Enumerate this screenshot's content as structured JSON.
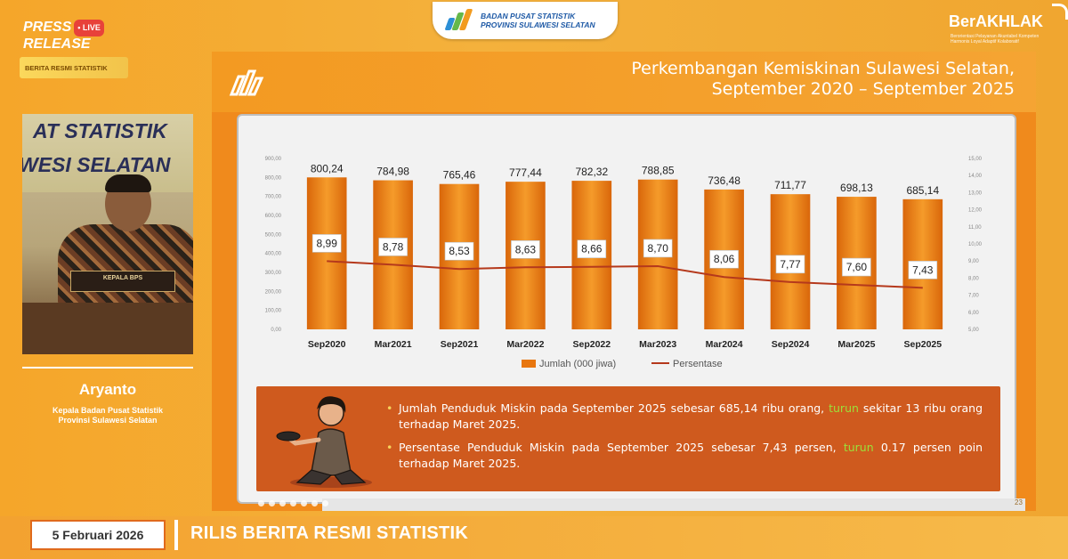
{
  "header": {
    "logo_line1": "BADAN PUSAT STATISTIK",
    "logo_line2": "PROVINSI SULAWESI SELATAN",
    "press_line1": "PRESS",
    "press_line2": "RELEASE",
    "live": "LIVE",
    "brs_tag": "BERITA RESMI STATISTIK",
    "berakhlak": "BerAKHLAK",
    "berakhlak_sub": "Berorientasi Pelayanan Akuntabel Kompeten Harmonis Loyal Adaptif Kolaboratif"
  },
  "video": {
    "banner_line1": "AT STATISTIK",
    "banner_line2": "WESI SELATAN",
    "nameplate": "KEPALA BPS"
  },
  "speaker": {
    "name": "Aryanto",
    "role_line1": "Kepala Badan Pusat Statistik",
    "role_line2": "Provinsi Sulawesi Selatan"
  },
  "slide": {
    "title_line1": "Perkembangan Kemiskinan Sulawesi Selatan,",
    "title_line2": "September 2020 –  September 2025",
    "page": "23",
    "bullet1_a": "Jumlah Penduduk Miskin pada September 2025 sebesar 685,14 ribu orang, ",
    "bullet1_hl": "turun",
    "bullet1_b": " sekitar 13 ribu orang terhadap Maret 2025.",
    "bullet2_a": "Persentase Penduduk Miskin pada September 2025 sebesar 7,43 persen, ",
    "bullet2_hl": "turun",
    "bullet2_b": " 0.17 persen poin terhadap Maret 2025."
  },
  "chart_data": {
    "type": "bar",
    "categories": [
      "Sep2020",
      "Mar2021",
      "Sep2021",
      "Mar2022",
      "Sep2022",
      "Mar2023",
      "Mar2024",
      "Sep2024",
      "Mar2025",
      "Sep2025"
    ],
    "series": [
      {
        "name": "Jumlah (000 jiwa)",
        "type": "bar",
        "axis": "left",
        "values": [
          800.24,
          784.98,
          765.46,
          777.44,
          782.32,
          788.85,
          736.48,
          711.77,
          698.13,
          685.14
        ],
        "labels": [
          "800,24",
          "784,98",
          "765,46",
          "777,44",
          "782,32",
          "788,85",
          "736,48",
          "711,77",
          "698,13",
          "685,14"
        ]
      },
      {
        "name": "Persentase",
        "type": "line",
        "axis": "right",
        "values": [
          8.99,
          8.78,
          8.53,
          8.63,
          8.66,
          8.7,
          8.06,
          7.77,
          7.6,
          7.43
        ],
        "labels": [
          "8,99",
          "8,78",
          "8,53",
          "8,63",
          "8,66",
          "8,70",
          "8,06",
          "7,77",
          "7,60",
          "7,43"
        ]
      }
    ],
    "y_left": {
      "min": 0,
      "max": 900,
      "step": 100,
      "ticks": [
        "0,00",
        "100,00",
        "200,00",
        "300,00",
        "400,00",
        "500,00",
        "600,00",
        "700,00",
        "800,00",
        "900,00"
      ]
    },
    "y_right": {
      "min": 5,
      "max": 15,
      "step": 1,
      "ticks": [
        "5,00",
        "6,00",
        "7,00",
        "8,00",
        "9,00",
        "10,00",
        "11,00",
        "12,00",
        "13,00",
        "14,00",
        "15,00"
      ]
    },
    "legend": "bottom",
    "grid": false,
    "colors": {
      "bar": "#e8760f",
      "bar_light": "#f5a23a",
      "line": "#b5391c"
    }
  },
  "bottom": {
    "date": "5 Februari 2026",
    "title": "RILIS BERITA RESMI STATISTIK"
  }
}
